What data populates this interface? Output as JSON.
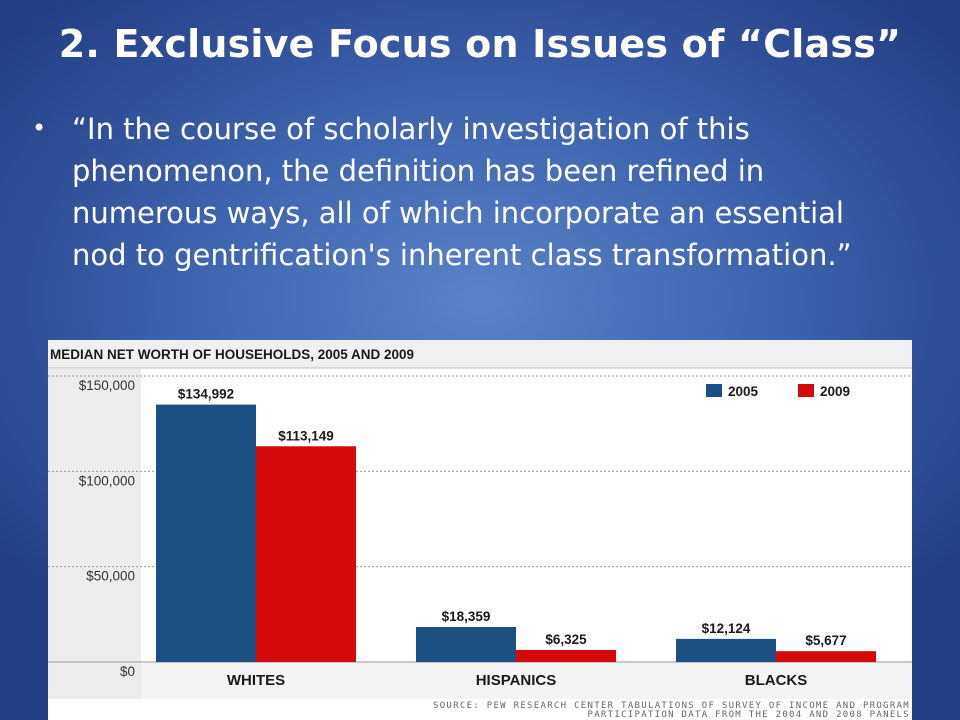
{
  "slide": {
    "title": "2. Exclusive Focus on Issues of “Class”",
    "bullet_marker": "•",
    "bullet_text": "“In the course of scholarly investigation of this phenomenon, the definition has been refined in numerous ways, all of which incorporate an essential nod to gentrification's inherent class transformation.”"
  },
  "chart_data": {
    "type": "bar",
    "title": "MEDIAN NET WORTH OF HOUSEHOLDS, 2005 AND 2009",
    "categories": [
      "WHITES",
      "HISPANICS",
      "BLACKS"
    ],
    "series": [
      {
        "name": "2005",
        "color": "#1c4f82",
        "values": [
          134992,
          18359,
          12124
        ],
        "labels": [
          "$134,992",
          "$18,359",
          "$12,124"
        ]
      },
      {
        "name": "2009",
        "color": "#d40a0a",
        "values": [
          113149,
          6325,
          5677
        ],
        "labels": [
          "$113,149",
          "$6,325",
          "$5,677"
        ]
      }
    ],
    "yticks": [
      0,
      50000,
      100000,
      150000
    ],
    "ytick_labels": [
      "$0",
      "$50,000",
      "$100,000",
      "$150,000"
    ],
    "ylim": [
      0,
      150000
    ],
    "grid": true,
    "legend_position": "top-right",
    "source_lines": [
      "SOURCE: PEW RESEARCH CENTER TABULATIONS OF SURVEY OF INCOME AND PROGRAM",
      "PARTICIPATION DATA FROM THE 2004 AND 2008 PANELS"
    ]
  }
}
